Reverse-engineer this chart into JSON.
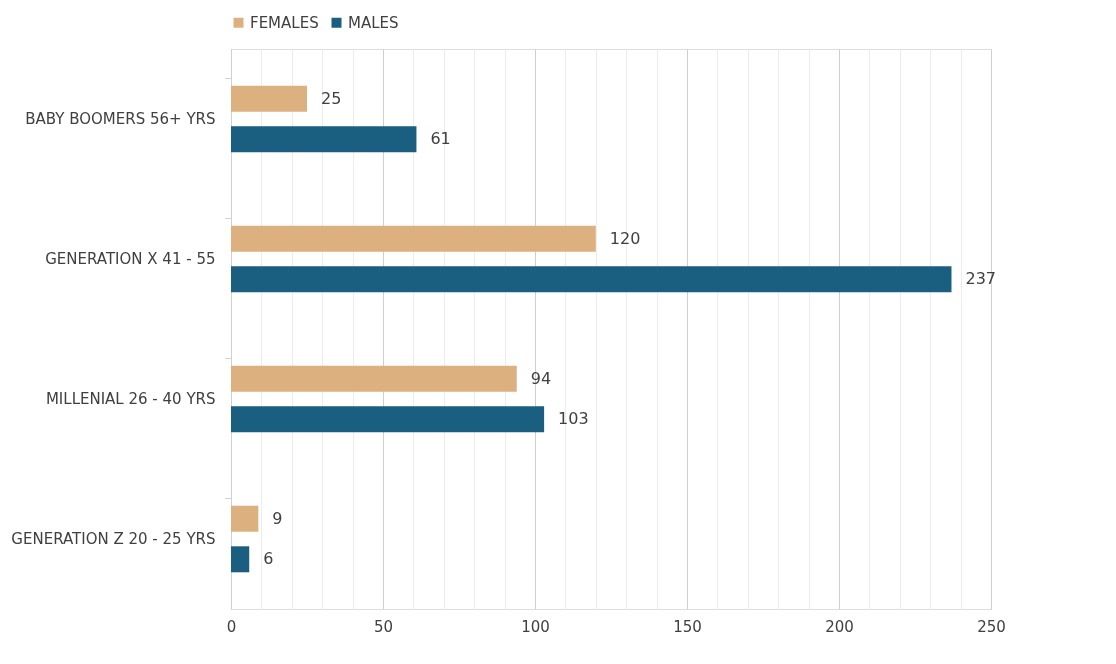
{
  "chart_data": {
    "type": "bar",
    "orientation": "horizontal",
    "categories": [
      "BABY BOOMERS 56+ YRS",
      "GENERATION X 41 - 55",
      "MILLENIAL 26 - 40 YRS",
      "GENERATION Z 20 - 25 YRS"
    ],
    "series": [
      {
        "name": "FEMALES",
        "color": "#ddb07f",
        "values": [
          25,
          120,
          94,
          9
        ]
      },
      {
        "name": "MALES",
        "color": "#1a5f80",
        "values": [
          61,
          237,
          103,
          6
        ]
      }
    ],
    "xlim": [
      0,
      250
    ],
    "xticks": [
      0,
      {
        "value": 10,
        "label": null
      },
      {
        "value": 20,
        "label": null
      },
      {
        "value": 30,
        "label": null
      },
      {
        "value": 40,
        "label": null
      },
      50,
      {
        "value": 60,
        "label": null
      },
      {
        "value": 70,
        "label": null
      },
      {
        "value": 80,
        "label": null
      },
      {
        "value": 90,
        "label": null
      },
      100,
      {
        "value": 110,
        "label": null
      },
      {
        "value": 120,
        "label": null
      },
      {
        "value": 130,
        "label": null
      },
      {
        "value": 140,
        "label": null
      },
      150,
      {
        "value": 160,
        "label": null
      },
      {
        "value": 170,
        "label": null
      },
      {
        "value": 180,
        "label": null
      },
      {
        "value": 190,
        "label": null
      },
      200,
      {
        "value": 210,
        "label": null
      },
      {
        "value": 220,
        "label": null
      },
      {
        "value": 230,
        "label": null
      },
      {
        "value": 240,
        "label": null
      },
      250
    ],
    "grid": "x",
    "legend": "top",
    "data_labels": true
  }
}
